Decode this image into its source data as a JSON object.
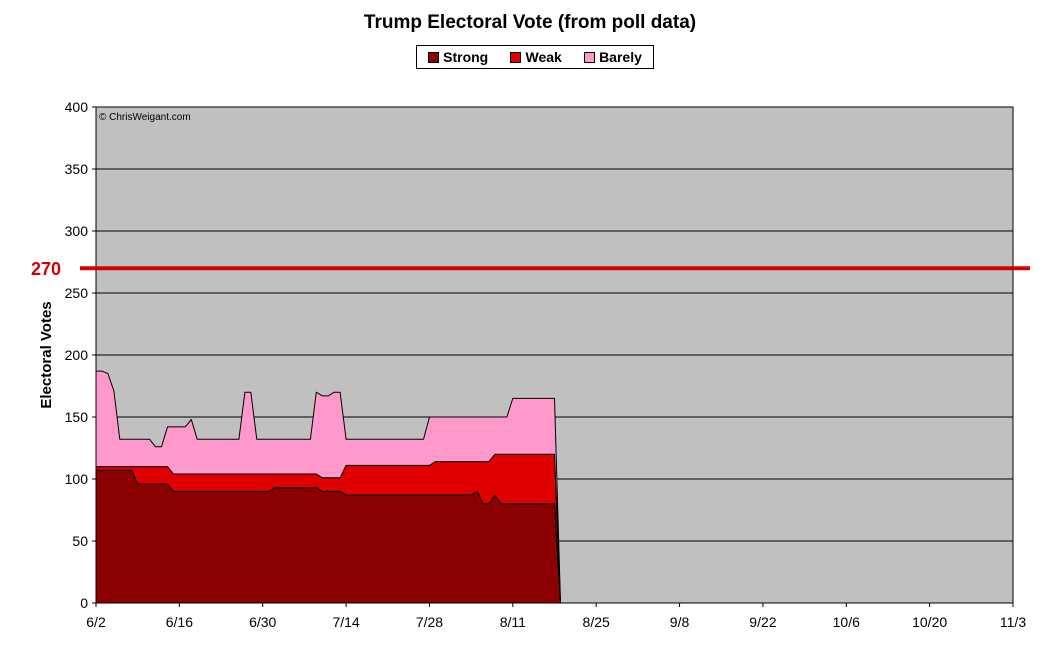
{
  "chart_data": {
    "type": "area",
    "stacked": true,
    "title": "Trump Electoral Vote (from poll data)",
    "xlabel": "",
    "ylabel": "Electoral Votes",
    "ylim": [
      0,
      400
    ],
    "yticks": [
      0,
      50,
      100,
      150,
      200,
      250,
      300,
      350,
      400
    ],
    "x_start": "6/2",
    "x_end": "11/3",
    "x_tick_labels": [
      "6/2",
      "6/16",
      "6/30",
      "7/14",
      "7/28",
      "8/11",
      "8/25",
      "9/8",
      "9/22",
      "10/6",
      "10/20",
      "11/3"
    ],
    "legend_position": "top-center",
    "grid": true,
    "plot_background": "#c0c0c0",
    "watermark": "© ChrisWeigant.com",
    "reference_line": {
      "value": 270,
      "label": "270",
      "color": "#d40000"
    },
    "x": [
      "6/2",
      "6/3",
      "6/4",
      "6/5",
      "6/6",
      "6/7",
      "6/8",
      "6/9",
      "6/10",
      "6/11",
      "6/12",
      "6/13",
      "6/14",
      "6/15",
      "6/16",
      "6/17",
      "6/18",
      "6/19",
      "6/20",
      "6/21",
      "6/22",
      "6/23",
      "6/24",
      "6/25",
      "6/26",
      "6/27",
      "6/28",
      "6/29",
      "6/30",
      "7/1",
      "7/2",
      "7/3",
      "7/4",
      "7/5",
      "7/6",
      "7/7",
      "7/8",
      "7/9",
      "7/10",
      "7/11",
      "7/12",
      "7/13",
      "7/14",
      "7/15",
      "7/16",
      "7/17",
      "7/18",
      "7/19",
      "7/20",
      "7/21",
      "7/22",
      "7/23",
      "7/24",
      "7/25",
      "7/26",
      "7/27",
      "7/28",
      "7/29",
      "7/30",
      "7/31",
      "8/1",
      "8/2",
      "8/3",
      "8/4",
      "8/5",
      "8/6",
      "8/7",
      "8/8",
      "8/9",
      "8/10",
      "8/11",
      "8/12",
      "8/13",
      "8/14",
      "8/15",
      "8/16",
      "8/17",
      "8/18",
      "8/19"
    ],
    "series": [
      {
        "name": "Strong",
        "color": "#8b0000",
        "values": [
          107,
          107,
          107,
          107,
          107,
          107,
          107,
          96,
          96,
          96,
          96,
          96,
          96,
          90,
          90,
          90,
          90,
          90,
          90,
          90,
          90,
          90,
          90,
          90,
          90,
          90,
          90,
          90,
          90,
          90,
          93,
          93,
          93,
          93,
          93,
          93,
          93,
          93,
          90,
          90,
          90,
          90,
          87,
          87,
          87,
          87,
          87,
          87,
          87,
          87,
          87,
          87,
          87,
          87,
          87,
          87,
          87,
          87,
          87,
          87,
          87,
          87,
          87,
          87,
          90,
          80,
          80,
          87,
          80,
          80,
          80,
          80,
          80,
          80,
          80,
          80,
          80,
          80,
          0
        ]
      },
      {
        "name": "Weak",
        "color": "#e00000",
        "values": [
          3,
          3,
          3,
          3,
          3,
          3,
          3,
          14,
          14,
          14,
          14,
          14,
          14,
          14,
          14,
          14,
          14,
          14,
          14,
          14,
          14,
          14,
          14,
          14,
          14,
          14,
          14,
          14,
          14,
          14,
          11,
          11,
          11,
          11,
          11,
          11,
          11,
          11,
          11,
          11,
          11,
          11,
          24,
          24,
          24,
          24,
          24,
          24,
          24,
          24,
          24,
          24,
          24,
          24,
          24,
          24,
          24,
          27,
          27,
          27,
          27,
          27,
          27,
          27,
          24,
          34,
          34,
          33,
          40,
          40,
          40,
          40,
          40,
          40,
          40,
          40,
          40,
          40,
          0
        ]
      },
      {
        "name": "Barely",
        "color": "#ff99cc",
        "values": [
          77,
          77,
          75,
          61,
          22,
          22,
          22,
          22,
          22,
          22,
          16,
          16,
          32,
          38,
          38,
          38,
          44,
          28,
          28,
          28,
          28,
          28,
          28,
          28,
          28,
          66,
          66,
          28,
          28,
          28,
          28,
          28,
          28,
          28,
          28,
          28,
          28,
          66,
          66,
          66,
          69,
          69,
          21,
          21,
          21,
          21,
          21,
          21,
          21,
          21,
          21,
          21,
          21,
          21,
          21,
          21,
          39,
          36,
          36,
          36,
          36,
          36,
          36,
          36,
          36,
          36,
          36,
          30,
          30,
          30,
          45,
          45,
          45,
          45,
          45,
          45,
          45,
          45,
          0
        ]
      }
    ]
  }
}
